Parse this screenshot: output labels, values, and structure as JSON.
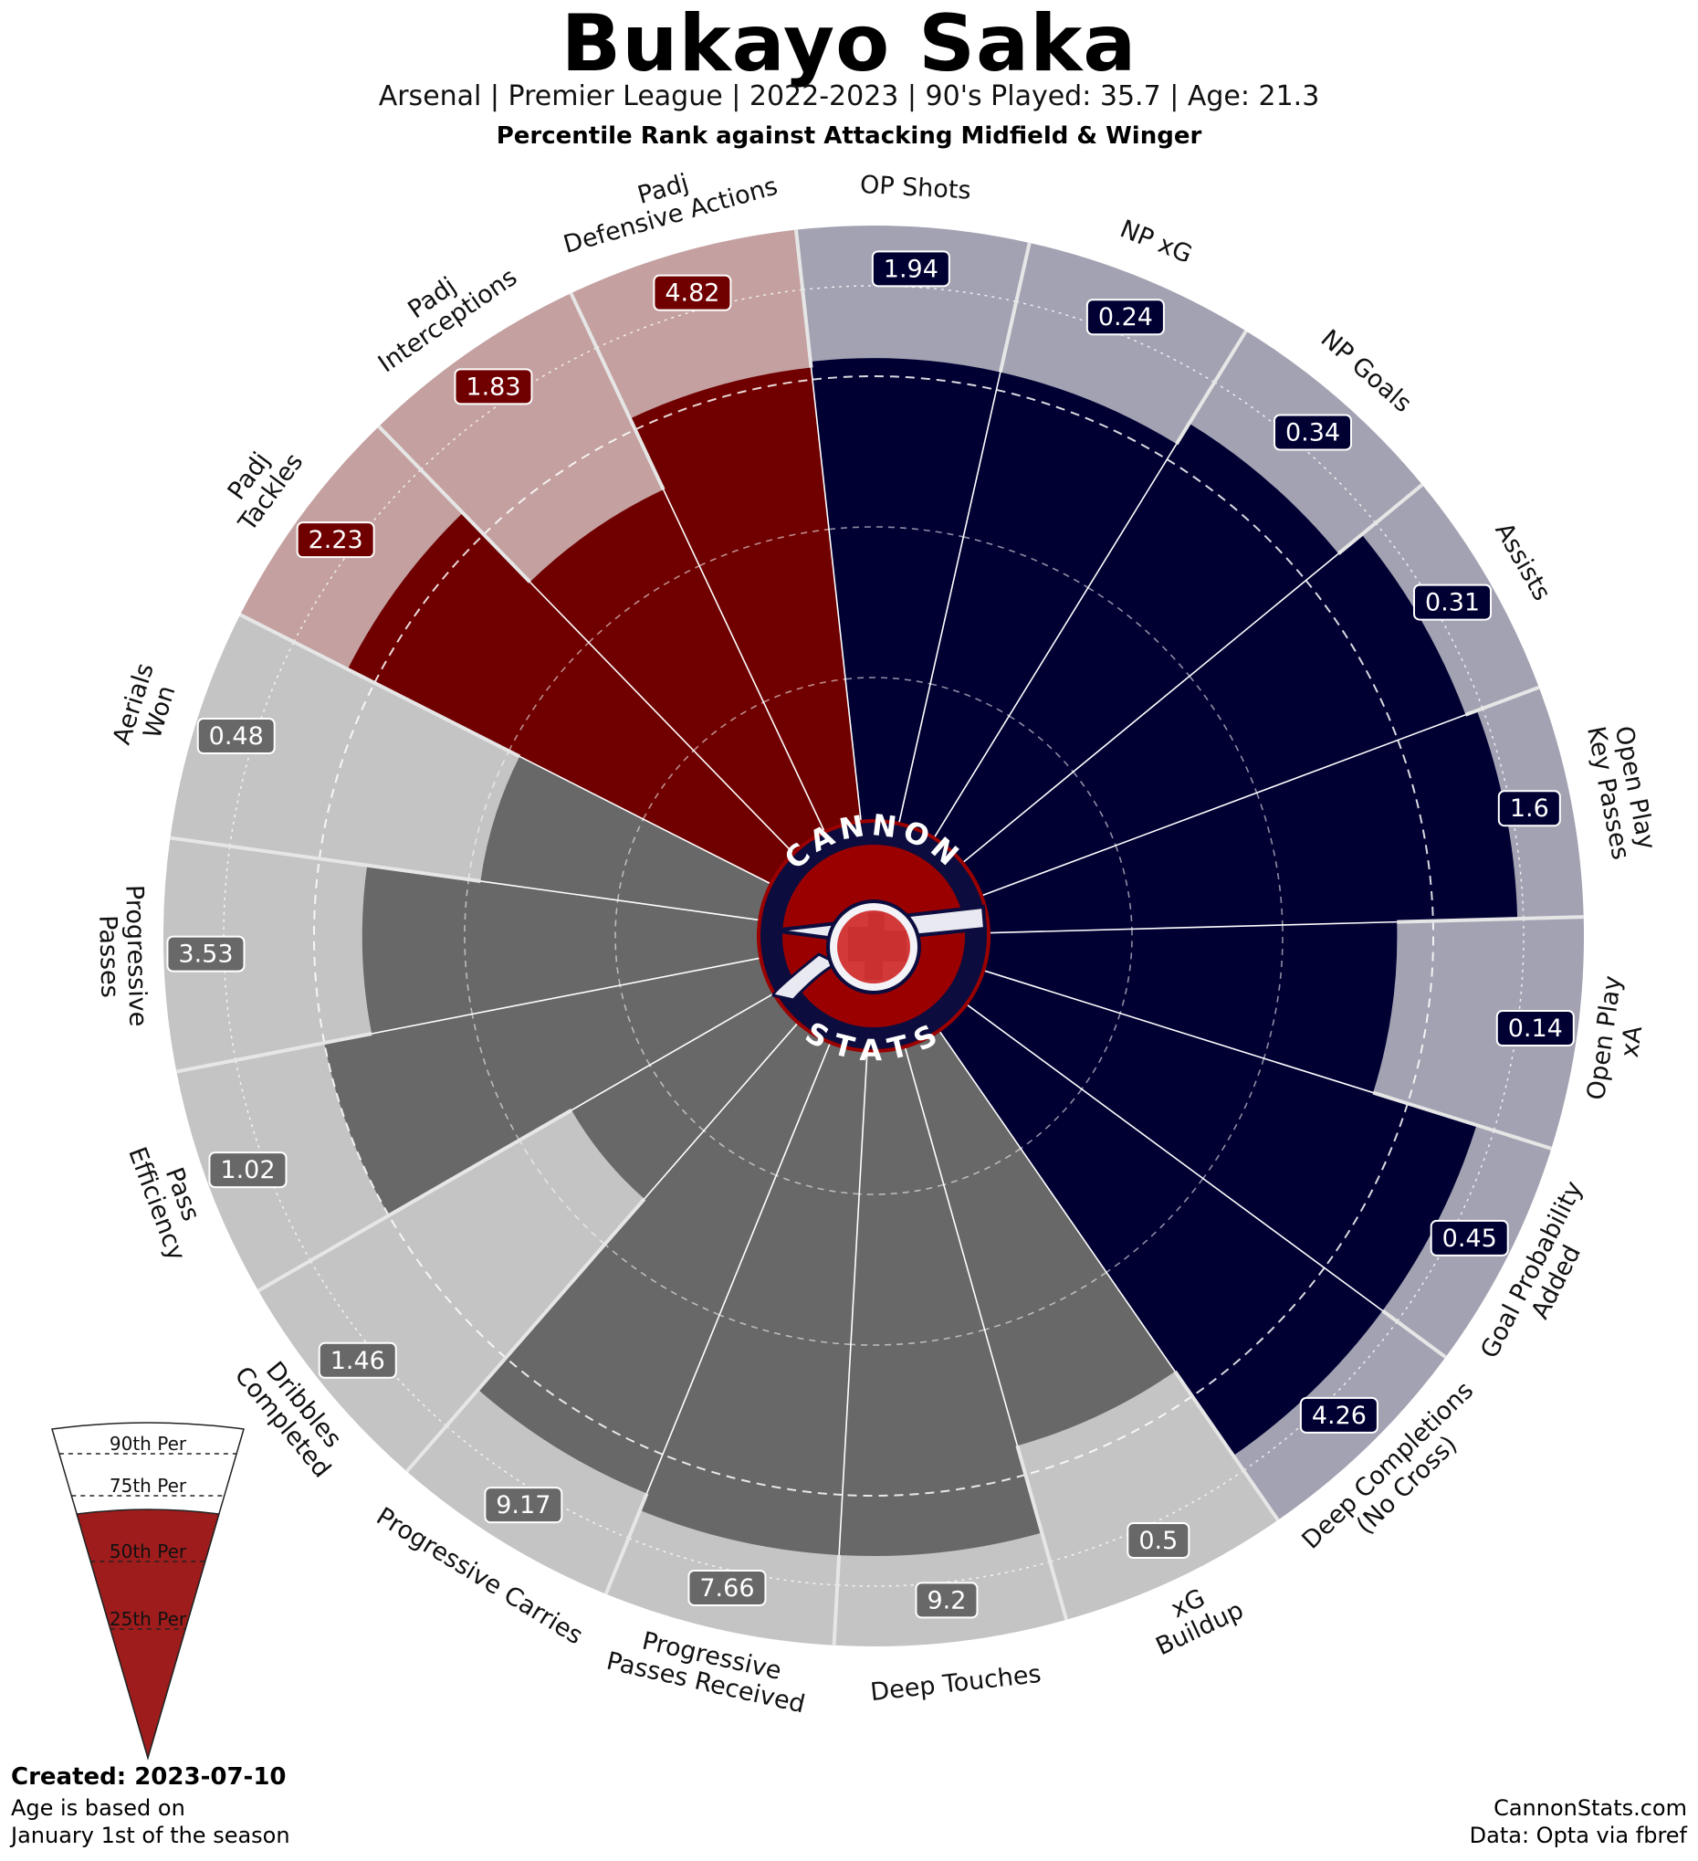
{
  "header": {
    "title": "Bukayo Saka",
    "subtitle": "Arsenal  | Premier League | 2022-2023 | 90's Played: 35.7 | Age: 21.3",
    "comparison": "Percentile Rank against Attacking Midfield & Winger"
  },
  "logo": {
    "top_text": "CANNON",
    "bottom_text": "STATS"
  },
  "colors": {
    "attacking": "#000033",
    "attacking_bg": "#a2a2b2",
    "defending": "#700000",
    "defending_bg": "#c4a0a0",
    "possession": "#686868",
    "possession_bg": "#c4c4c4",
    "legend_fill": "#9f1c1c",
    "logo_ring": "#0c0c3e",
    "logo_red": "#9b0000"
  },
  "chart_data": {
    "type": "radar-bar",
    "title": "Bukayo Saka",
    "scale": "percentile",
    "rlim": [
      0,
      100
    ],
    "gridlines": [
      25,
      50,
      75,
      90
    ],
    "metrics": [
      {
        "label": "OP Shots",
        "value": "1.94",
        "percentile": 78,
        "group": "attacking"
      },
      {
        "label": "NP xG",
        "value": "0.24",
        "percentile": 78,
        "group": "attacking"
      },
      {
        "label": "NP Goals",
        "value": "0.34",
        "percentile": 82,
        "group": "attacking"
      },
      {
        "label": "Assists",
        "value": "0.31",
        "percentile": 87,
        "group": "attacking"
      },
      {
        "label": "Open Play\nKey Passes",
        "value": "1.6",
        "percentile": 89,
        "group": "attacking"
      },
      {
        "label": "Open Play\nxA",
        "value": "0.14",
        "percentile": 69,
        "group": "attacking"
      },
      {
        "label": "Goal Probability\nAdded",
        "value": "0.45",
        "percentile": 87,
        "group": "attacking"
      },
      {
        "label": "Deep Completions\n(No Cross)",
        "value": "4.26",
        "percentile": 87,
        "group": "attacking"
      },
      {
        "label": "xG\nBuildup",
        "value": "0.5",
        "percentile": 70,
        "group": "possession"
      },
      {
        "label": "Deep Touches",
        "value": "9.2",
        "percentile": 85,
        "group": "possession"
      },
      {
        "label": "Progressive\nPasses Received",
        "value": "7.66",
        "percentile": 85,
        "group": "possession"
      },
      {
        "label": "Progressive Carries",
        "value": "9.17",
        "percentile": 82,
        "group": "possession"
      },
      {
        "label": "Dribbles\nCompleted",
        "value": "1.46",
        "percentile": 40,
        "group": "possession"
      },
      {
        "label": "Pass\nEfficiency",
        "value": "1.02",
        "percentile": 75,
        "group": "possession"
      },
      {
        "label": "Progressive\nPasses",
        "value": "3.53",
        "percentile": 67,
        "group": "possession"
      },
      {
        "label": "Aerials\nWon",
        "value": "0.48",
        "percentile": 48,
        "group": "possession"
      },
      {
        "label": "Padj\nTackles",
        "value": "2.23",
        "percentile": 80,
        "group": "defending"
      },
      {
        "label": "Padj\nInterceptions",
        "value": "1.83",
        "percentile": 64,
        "group": "defending"
      },
      {
        "label": "Padj\nDefensive Actions",
        "value": "4.82",
        "percentile": 77,
        "group": "defending"
      }
    ]
  },
  "legend": {
    "labels": [
      "90th Per",
      "75th Per",
      "50th Per",
      "25th Per"
    ]
  },
  "footer": {
    "created": "Created: 2023-07-10",
    "age_note_1": "Age is based on",
    "age_note_2": "January 1st of the season",
    "credit_1": "CannonStats.com",
    "credit_2": "Data: Opta via fbref"
  }
}
